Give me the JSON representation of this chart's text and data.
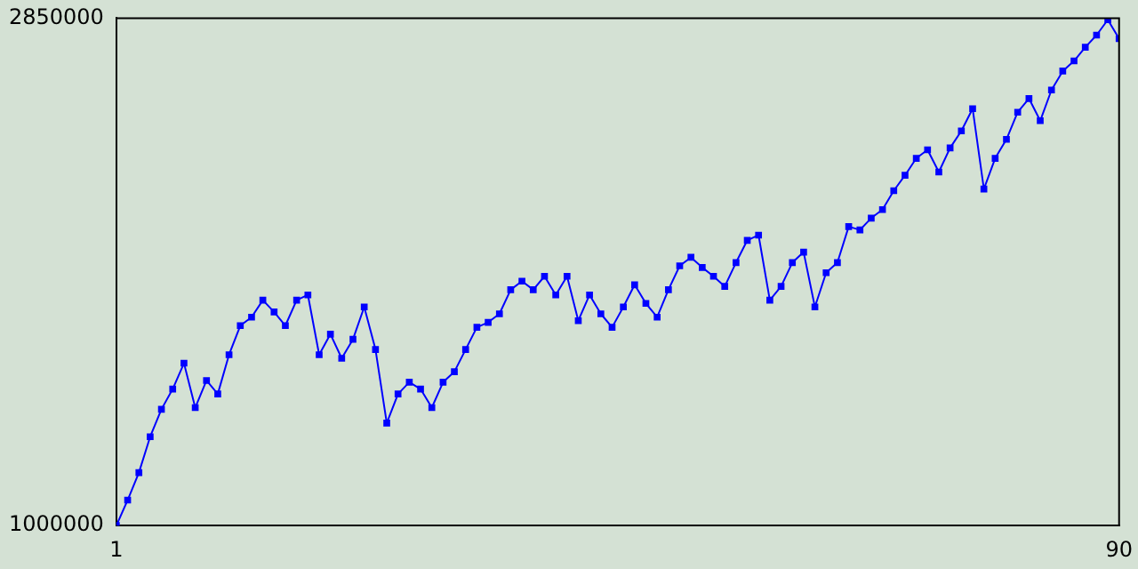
{
  "chart_data": {
    "type": "line",
    "marker": "square",
    "grid": false,
    "x": [
      1,
      2,
      3,
      4,
      5,
      6,
      7,
      8,
      9,
      10,
      11,
      12,
      13,
      14,
      15,
      16,
      17,
      18,
      19,
      20,
      21,
      22,
      23,
      24,
      25,
      26,
      27,
      28,
      29,
      30,
      31,
      32,
      33,
      34,
      35,
      36,
      37,
      38,
      39,
      40,
      41,
      42,
      43,
      44,
      45,
      46,
      47,
      48,
      49,
      50,
      51,
      52,
      53,
      54,
      55,
      56,
      57,
      58,
      59,
      60,
      61,
      62,
      63,
      64,
      65,
      66,
      67,
      68,
      69,
      70,
      71,
      72,
      73,
      74,
      75,
      76,
      77,
      78,
      79,
      80,
      81,
      82,
      83,
      84,
      85,
      86,
      87,
      88,
      89,
      90
    ],
    "series": [
      {
        "color": "#0000ff",
        "values": [
          1000000,
          1093000,
          1193000,
          1324000,
          1424000,
          1498000,
          1592000,
          1430000,
          1529000,
          1480000,
          1623000,
          1729000,
          1760000,
          1822000,
          1779000,
          1729000,
          1822000,
          1841000,
          1623000,
          1698000,
          1610000,
          1679000,
          1797000,
          1642000,
          1374000,
          1480000,
          1523000,
          1498000,
          1430000,
          1523000,
          1561000,
          1642000,
          1723000,
          1741000,
          1772000,
          1860000,
          1891000,
          1860000,
          1909000,
          1841000,
          1909000,
          1747000,
          1841000,
          1772000,
          1723000,
          1797000,
          1878000,
          1810000,
          1760000,
          1860000,
          1947000,
          1978000,
          1941000,
          1909000,
          1872000,
          1959000,
          2040000,
          2059000,
          1822000,
          1872000,
          1959000,
          1997000,
          1797000,
          1922000,
          1959000,
          2090000,
          2078000,
          2121000,
          2152000,
          2221000,
          2277000,
          2339000,
          2370000,
          2289000,
          2377000,
          2439000,
          2520000,
          2227000,
          2339000,
          2408000,
          2507000,
          2557000,
          2476000,
          2588000,
          2657000,
          2694000,
          2744000,
          2788000,
          2844000,
          2775000
        ]
      }
    ],
    "xlim": [
      1,
      90
    ],
    "xticks": [
      1,
      90
    ],
    "ylim": [
      1000000,
      2850000
    ],
    "yticks": [
      1000000,
      2850000
    ]
  }
}
